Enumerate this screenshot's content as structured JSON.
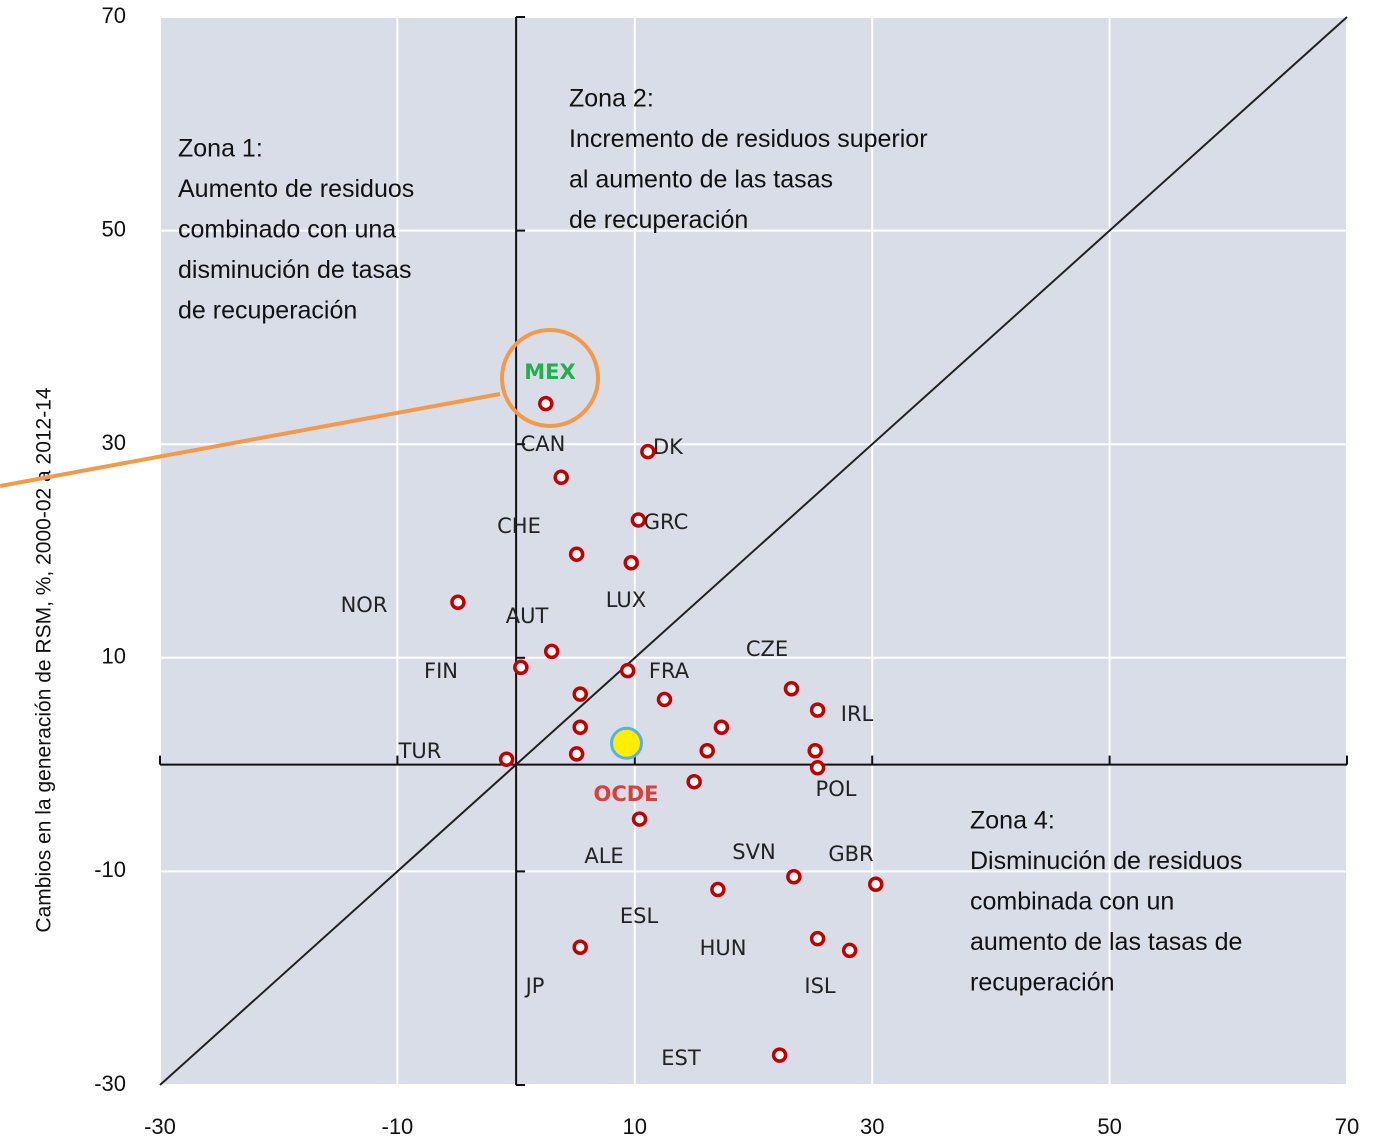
{
  "chart_data": {
    "type": "scatter",
    "ylabel": "Cambios en la generación de RSM, %, 2000-02 a 2012-14",
    "xlim": [
      -30,
      70
    ],
    "ylim": [
      -30,
      70
    ],
    "xticks": [
      -30,
      -10,
      10,
      30,
      50,
      70
    ],
    "yticks": [
      -30,
      -10,
      10,
      30,
      50,
      70
    ],
    "grid": true,
    "color": "#c00000",
    "background": "#d9dde7",
    "x": [
      2.5,
      3.8,
      11.1,
      10.3,
      5.1,
      9.7,
      -4.9,
      3.0,
      0.4,
      9.4,
      5.4,
      12.5,
      23.2,
      25.4,
      5.4,
      17.3,
      5.1,
      16.1,
      25.2,
      -0.8,
      25.4,
      15.0,
      10.4,
      23.4,
      30.3,
      17.0,
      5.4,
      25.4,
      28.1,
      22.2
    ],
    "y": [
      33.8,
      26.9,
      29.3,
      22.9,
      19.7,
      18.9,
      15.2,
      10.6,
      9.1,
      8.8,
      6.6,
      6.1,
      7.1,
      5.1,
      3.5,
      3.5,
      1.0,
      1.3,
      1.3,
      0.5,
      -0.3,
      -1.6,
      -5.1,
      -10.5,
      -11.2,
      -11.7,
      -17.1,
      -16.3,
      -17.4,
      -27.2
    ],
    "highlight": {
      "x": 9.3,
      "y": 2.0,
      "color": "#ffee00"
    },
    "labels": [
      {
        "text": "MEX",
        "color": "#22b04b"
      },
      {
        "text": "CAN",
        "color": "#222222"
      },
      {
        "text": "DK",
        "color": "#222222"
      },
      {
        "text": "GRC",
        "color": "#222222"
      },
      {
        "text": "CHE",
        "color": "#222222"
      },
      {
        "text": "LUX",
        "color": "#222222"
      },
      {
        "text": "NOR",
        "color": "#222222"
      },
      {
        "text": "AUT",
        "color": "#222222"
      },
      {
        "text": "FIN",
        "color": "#222222"
      },
      {
        "text": "FRA",
        "color": "#222222"
      },
      {
        "text": "CZE",
        "color": "#222222"
      },
      {
        "text": "IRL",
        "color": "#222222"
      },
      {
        "text": "TUR",
        "color": "#222222"
      },
      {
        "text": "OCDE",
        "color": "#d9403a"
      },
      {
        "text": "POL",
        "color": "#222222"
      },
      {
        "text": "ALE",
        "color": "#222222"
      },
      {
        "text": "SVN",
        "color": "#222222"
      },
      {
        "text": "GBR",
        "color": "#222222"
      },
      {
        "text": "ESL",
        "color": "#222222"
      },
      {
        "text": "HUN",
        "color": "#222222"
      },
      {
        "text": "JP",
        "color": "#222222"
      },
      {
        "text": "ISL",
        "color": "#222222"
      },
      {
        "text": "EST",
        "color": "#222222"
      }
    ],
    "zones": [
      [
        "Zona 1:",
        "Aumento de residuos",
        "combinado  con una",
        "disminución  de tasas",
        "de recuperación"
      ],
      [
        "Zona 2:",
        "Incremento de residuos  superior",
        "al aumento  de las tasas",
        "de recuperación"
      ],
      [
        "Zona 4:",
        "Disminución  de residuos",
        "combinada  con un",
        "aumento de las tasas de",
        "recuperación"
      ]
    ]
  }
}
